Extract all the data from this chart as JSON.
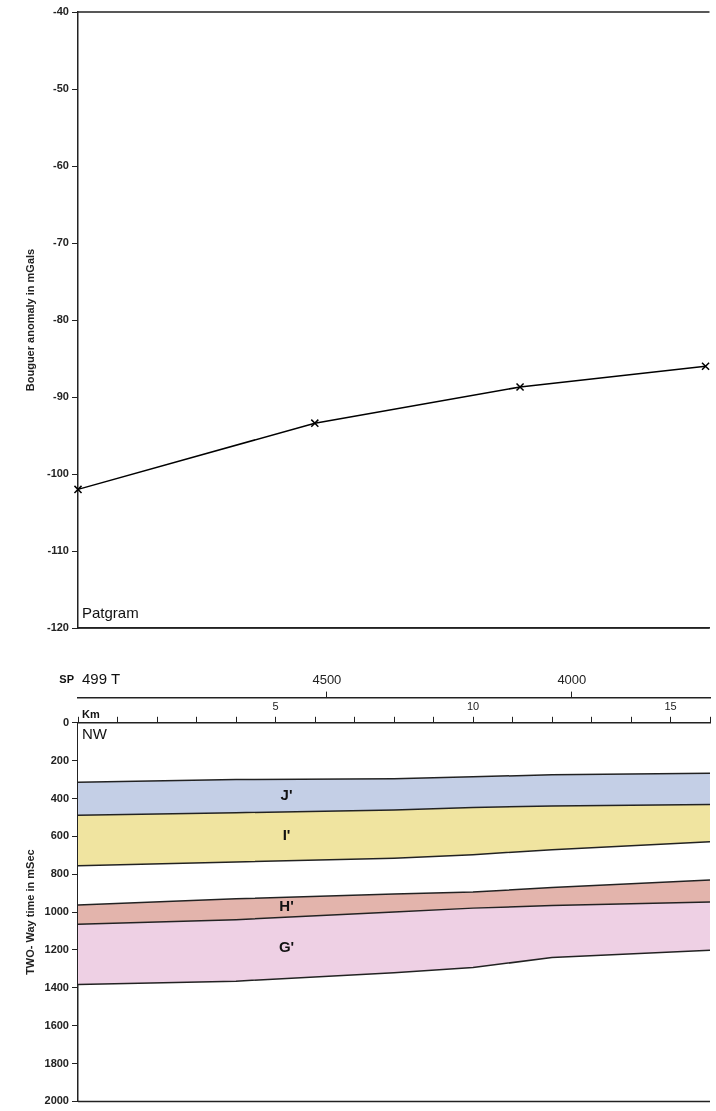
{
  "chart_data": [
    {
      "type": "line",
      "ylabel": "Bouguer anomaly in mGals",
      "xlim": [
        0,
        16
      ],
      "ylim": [
        -120,
        -40
      ],
      "yticks": [
        -40,
        -50,
        -60,
        -70,
        -80,
        -90,
        -100,
        -110,
        -120
      ],
      "tick_labels": "y",
      "grid": false,
      "legend": false,
      "marker": "cross",
      "line_style": "solid",
      "x": [
        0,
        6.0,
        11.2,
        15.9
      ],
      "series": [
        {
          "color": "#000000",
          "values": [
            -102,
            -93.4,
            -88.7,
            -86
          ]
        }
      ],
      "annotations": [
        "Patgram"
      ]
    },
    {
      "type": "area",
      "xlabel": "Km",
      "ylabel": "TWO- Way time in mSec",
      "x2label": "SP",
      "xlim": [
        0,
        16
      ],
      "x2lim": [
        5008,
        3718
      ],
      "ylim": [
        2000,
        0
      ],
      "xticks": [
        {
          "value": 0,
          "label": null
        },
        {
          "value": 1,
          "label": null
        },
        {
          "value": 2,
          "label": null
        },
        {
          "value": 3,
          "label": null
        },
        {
          "value": 4,
          "label": null
        },
        5,
        {
          "value": 6,
          "label": null
        },
        {
          "value": 7,
          "label": null
        },
        {
          "value": 8,
          "label": null
        },
        {
          "value": 9,
          "label": null
        },
        10,
        {
          "value": 11,
          "label": null
        },
        {
          "value": 12,
          "label": null
        },
        {
          "value": 13,
          "label": null
        },
        {
          "value": 14,
          "label": null
        },
        15,
        {
          "value": 16,
          "label": null
        }
      ],
      "x2ticks": [
        4500,
        4000
      ],
      "yticks": [
        0,
        200,
        400,
        600,
        800,
        1000,
        1200,
        1400,
        1600,
        1800,
        2000
      ],
      "grid": false,
      "legend": false,
      "x": [
        0,
        4,
        8,
        10,
        12,
        16
      ],
      "stacked": true,
      "series": [
        {
          "color": "#ffffff",
          "values": [
            314,
            300,
            295,
            285,
            275,
            266
          ]
        },
        {
          "name": "J'",
          "color": "#c4cfe6",
          "values": [
            175,
            175,
            165,
            162,
            165,
            165
          ]
        },
        {
          "name": "I'",
          "color": "#f0e4a0",
          "values": [
            266,
            260,
            255,
            250,
            230,
            197
          ]
        },
        {
          "color": "#ffffff",
          "values": [
            208,
            195,
            190,
            197,
            200,
            202
          ]
        },
        {
          "name": "H'",
          "color": "#e3b4ac",
          "values": [
            101,
            110,
            95,
            85,
            95,
            117
          ]
        },
        {
          "name": "G'",
          "color": "#eed0e4",
          "values": [
            319,
            325,
            320,
            314,
            275,
            255
          ]
        }
      ],
      "annotations": [
        "499 T",
        "NW"
      ]
    }
  ]
}
